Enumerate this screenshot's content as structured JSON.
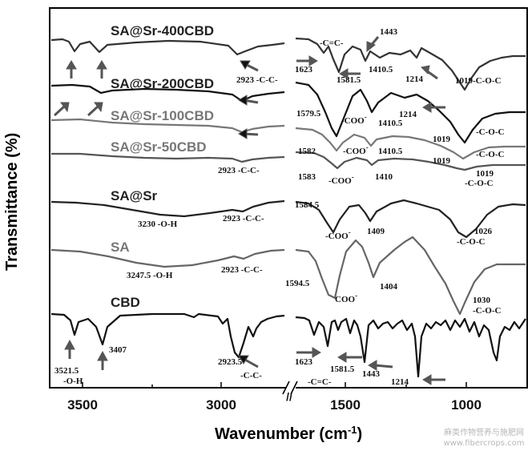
{
  "chart_data": {
    "type": "line",
    "xlabel": "Wavenumber (cm",
    "xlabel_sup": "-1",
    "xlabel_end": ")",
    "ylabel": "Transmittance (%)",
    "x_ticks": [
      "3500",
      "3000",
      "1500",
      "1000"
    ],
    "axis_break": "//",
    "x_reversed": true,
    "segments": [
      {
        "x_min": 2700,
        "x_max": 3650
      },
      {
        "x_min": 700,
        "x_max": 1800
      }
    ],
    "series": [
      {
        "name": "SA@Sr-400CBD",
        "color": "#333333",
        "peaks": [
          [
            3521.5,
            0.55
          ],
          [
            3407,
            0.5
          ],
          [
            2923,
            0.55
          ],
          [
            1623,
            0.35
          ],
          [
            1581.5,
            1.0
          ],
          [
            1443,
            0.6
          ],
          [
            1410.5,
            0.5
          ],
          [
            1214,
            0.35
          ],
          [
            1019,
            0.8
          ]
        ]
      },
      {
        "name": "SA@Sr-200CBD",
        "color": "#111111",
        "peaks": [
          [
            3407,
            0.3
          ],
          [
            2923,
            0.35
          ],
          [
            1579.5,
            1.0
          ],
          [
            1410.5,
            0.55
          ],
          [
            1214,
            0.25
          ],
          [
            1019,
            0.7
          ]
        ]
      },
      {
        "name": "SA@Sr-100CBD",
        "color": "#777777",
        "peaks": [
          [
            2923,
            0.3
          ],
          [
            1582,
            1.0
          ],
          [
            1410.5,
            0.5
          ],
          [
            1019,
            0.65
          ]
        ]
      },
      {
        "name": "SA@Sr-50CBD",
        "color": "#555555",
        "peaks": [
          [
            2923,
            0.25
          ],
          [
            1583,
            1.0
          ],
          [
            1410,
            0.45
          ],
          [
            1019,
            0.5
          ]
        ]
      },
      {
        "name": "SA@Sr",
        "color": "#222222",
        "peaks": [
          [
            3230,
            0.45
          ],
          [
            2923,
            0.3
          ],
          [
            1584.5,
            1.0
          ],
          [
            1409,
            0.55
          ],
          [
            1026,
            0.85
          ]
        ]
      },
      {
        "name": "SA",
        "color": "#666666",
        "peaks": [
          [
            3247.5,
            0.45
          ],
          [
            2923,
            0.3
          ],
          [
            1594.5,
            1.0
          ],
          [
            1404,
            0.7
          ],
          [
            1030,
            0.95
          ]
        ]
      },
      {
        "name": "CBD",
        "color": "#111111",
        "peaks": [
          [
            3521.5,
            0.45
          ],
          [
            3407,
            0.75
          ],
          [
            2923.5,
            0.85
          ],
          [
            1623,
            0.55
          ],
          [
            1581.5,
            0.65
          ],
          [
            1443,
            0.75
          ],
          [
            1214,
            1.0
          ]
        ]
      }
    ],
    "annotations": [
      {
        "text": "1443"
      },
      {
        "text": "-C=C-"
      },
      {
        "text": "1623"
      },
      {
        "text": "1581.5"
      },
      {
        "text": "1410.5"
      },
      {
        "text": "1214"
      },
      {
        "text": "1019-C-O-C"
      },
      {
        "text": "2923 -C-C-"
      },
      {
        "text": "1579.5"
      },
      {
        "text": "-COO"
      },
      {
        "text": "1214"
      },
      {
        "text": "1410.5"
      },
      {
        "text": "1019"
      },
      {
        "text": "-C-O-C"
      },
      {
        "text": "1582"
      },
      {
        "text": "-COO"
      },
      {
        "text": "1410.5"
      },
      {
        "text": "1019"
      },
      {
        "text": "-C-O-C"
      },
      {
        "text": "2923 -C-C-"
      },
      {
        "text": "1583"
      },
      {
        "text": "-COO"
      },
      {
        "text": "1410"
      },
      {
        "text": "1019"
      },
      {
        "text": "-C-O-C"
      },
      {
        "text": "3230 -O-H"
      },
      {
        "text": "2923 -C-C-"
      },
      {
        "text": "1584.5"
      },
      {
        "text": "-COO"
      },
      {
        "text": "1409"
      },
      {
        "text": "1026"
      },
      {
        "text": "-C-O-C"
      },
      {
        "text": "3247.5 -O-H"
      },
      {
        "text": "2923 -C-C-"
      },
      {
        "text": "1594.5"
      },
      {
        "text": "COO"
      },
      {
        "text": "1404"
      },
      {
        "text": "1030"
      },
      {
        "text": "-C-O-C"
      },
      {
        "text": "3521.5"
      },
      {
        "text": "-O-H"
      },
      {
        "text": "3407"
      },
      {
        "text": "2923.5"
      },
      {
        "text": "-C-C-"
      },
      {
        "text": "1623"
      },
      {
        "text": "1581.5"
      },
      {
        "text": "-C=C-"
      },
      {
        "text": "1443"
      },
      {
        "text": "1214"
      }
    ]
  },
  "watermark": "麻类作物营养与施肥网\nwww.fibercrops.com"
}
